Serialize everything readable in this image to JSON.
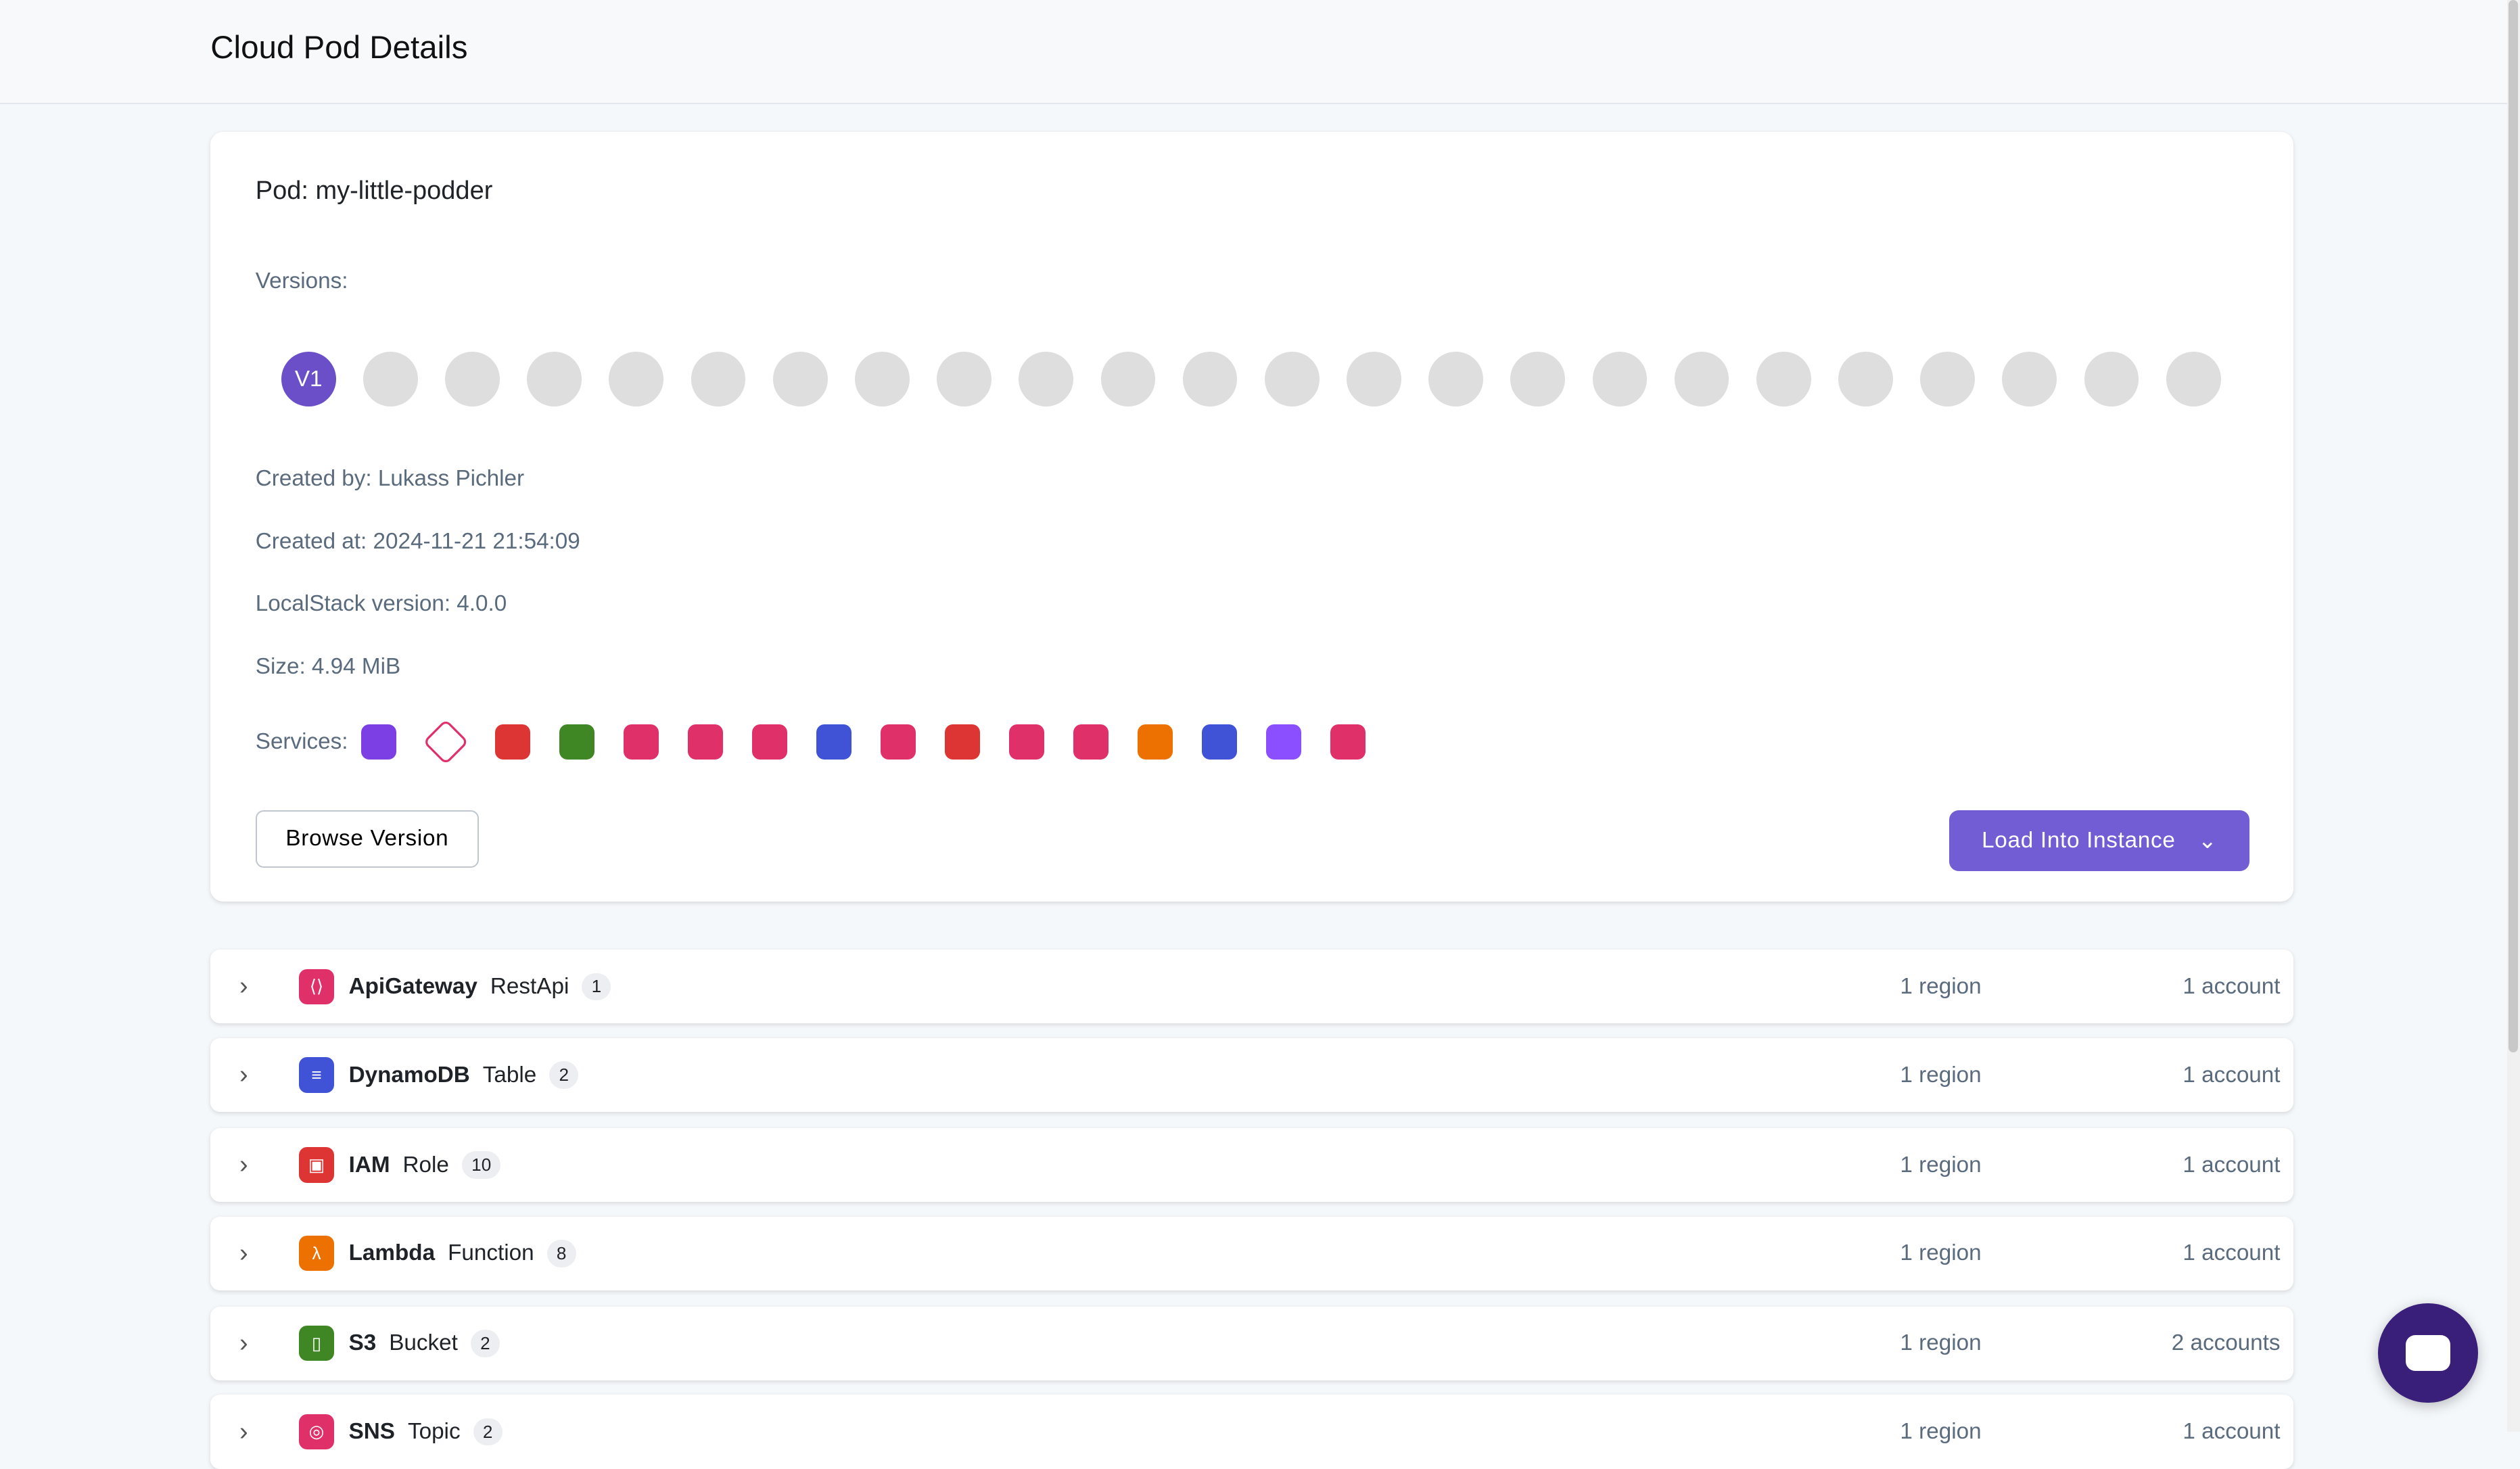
{
  "header": {
    "title": "Cloud Pod Details"
  },
  "pod": {
    "title": "Pod: my-little-podder",
    "versions_label": "Versions:",
    "active_version": "V1",
    "version_count": 24,
    "created_by": "Created by: Lukass Pichler",
    "created_at": "Created at: 2024-11-21 21:54:09",
    "localstack_version": "LocalStack version: 4.0.0",
    "size": "Size: 4.94 MiB",
    "services_label": "Services:",
    "services": [
      {
        "icon": "cloudfront-icon",
        "color": "#7b3fe4"
      },
      {
        "icon": "tag-icon",
        "color": "#e0306a"
      },
      {
        "icon": "iam-icon",
        "color": "#dd3434"
      },
      {
        "icon": "s3-icon",
        "color": "#3f8624"
      },
      {
        "icon": "eventbridge-icon",
        "color": "#e0306a"
      },
      {
        "icon": "stepfunctions-icon",
        "color": "#e0306a"
      },
      {
        "icon": "appsync-icon",
        "color": "#e0306a"
      },
      {
        "icon": "dynamodb-icon",
        "color": "#4053d6"
      },
      {
        "icon": "cloudwatch-logs-icon",
        "color": "#e0306a"
      },
      {
        "icon": "ses-icon",
        "color": "#dd3434"
      },
      {
        "icon": "sns-icon",
        "color": "#e0306a"
      },
      {
        "icon": "apigateway-icon",
        "color": "#e0306a"
      },
      {
        "icon": "lambda-icon",
        "color": "#ed7100"
      },
      {
        "icon": "dynamodb-streams-icon",
        "color": "#4053d6"
      },
      {
        "icon": "kinesis-icon",
        "color": "#8c4fff"
      },
      {
        "icon": "apigateway-v2-icon",
        "color": "#e0306a"
      }
    ],
    "browse_label": "Browse Version",
    "load_label": "Load Into Instance"
  },
  "resources": [
    {
      "service": "ApiGateway",
      "type": "RestApi",
      "count": "1",
      "regions": "1 region",
      "accounts": "1 account",
      "color": "#e0306a",
      "glyph": "⟨⟩"
    },
    {
      "service": "DynamoDB",
      "type": "Table",
      "count": "2",
      "regions": "1 region",
      "accounts": "1 account",
      "color": "#4053d6",
      "glyph": "≡"
    },
    {
      "service": "IAM",
      "type": "Role",
      "count": "10",
      "regions": "1 region",
      "accounts": "1 account",
      "color": "#dd3434",
      "glyph": "▣"
    },
    {
      "service": "Lambda",
      "type": "Function",
      "count": "8",
      "regions": "1 region",
      "accounts": "1 account",
      "color": "#ed7100",
      "glyph": "λ"
    },
    {
      "service": "S3",
      "type": "Bucket",
      "count": "2",
      "regions": "1 region",
      "accounts": "2 accounts",
      "color": "#3f8624",
      "glyph": "▯"
    },
    {
      "service": "SNS",
      "type": "Topic",
      "count": "2",
      "regions": "1 region",
      "accounts": "1 account",
      "color": "#e0306a",
      "glyph": "◎"
    }
  ]
}
